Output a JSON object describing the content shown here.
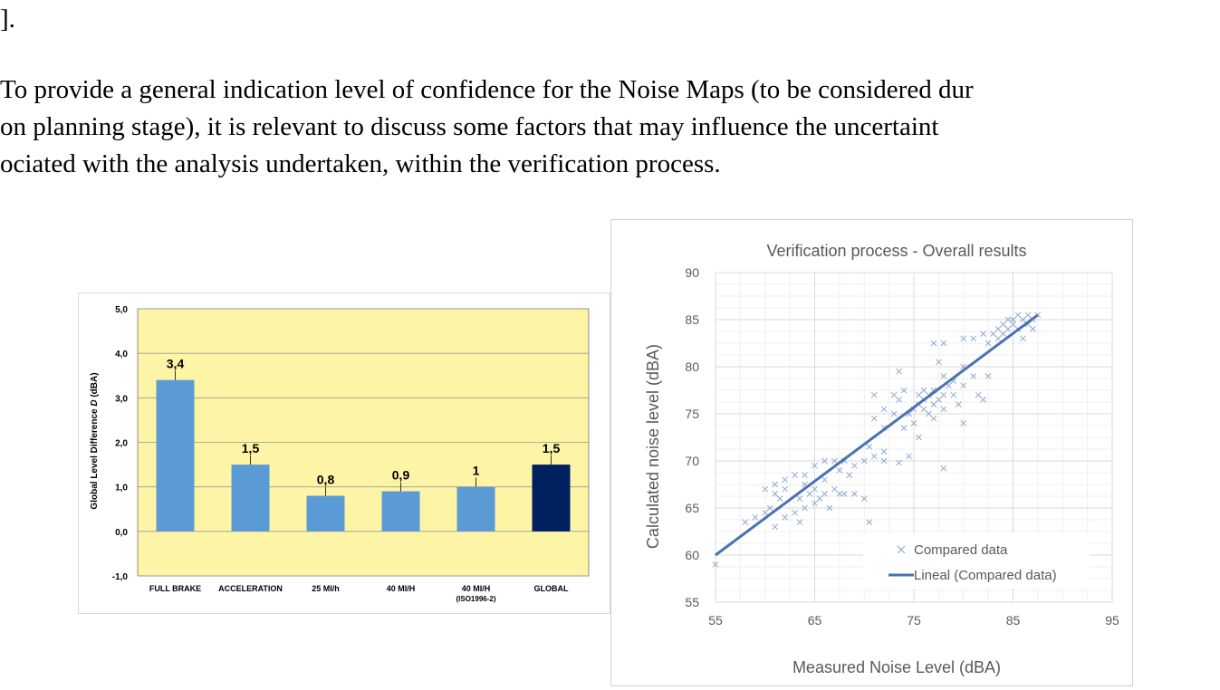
{
  "document": {
    "lines": [
      "].",
      "To provide a general indication level of confidence for the Noise Maps (to be considered dur",
      "on planning stage), it is relevant to discuss some factors that may influence the uncertaint",
      "ociated with the analysis undertaken, within the verification process."
    ]
  },
  "colors": {
    "bar_fill": "#5b9bd5",
    "bar_global_fill": "#002060",
    "plot_area_bg": "#fdf5a5",
    "scatter_marker": "#8ea9cf",
    "trendline": "#4a72b2",
    "grid": "#d9d9d9",
    "tick_text": "#595959"
  },
  "chart_data": [
    {
      "type": "bar",
      "title": "",
      "ylabel_parts": [
        "Global Level Difference ",
        "D",
        " (dBA)"
      ],
      "xlabel": "",
      "categories": [
        [
          "FULL BRAKE"
        ],
        [
          "ACCELERATION"
        ],
        [
          "25 MI/h"
        ],
        [
          "40 MI/H"
        ],
        [
          "40 MI/H",
          "(ISO1996-2)"
        ],
        [
          "GLOBAL"
        ]
      ],
      "values": [
        3.4,
        1.5,
        0.8,
        0.9,
        1.0,
        1.5
      ],
      "value_labels": [
        "3,4",
        "1,5",
        "0,8",
        "0,9",
        "1",
        "1,5"
      ],
      "ylim": [
        -1,
        5
      ],
      "yticks": [
        5,
        4,
        3,
        2,
        1,
        0,
        -1
      ],
      "ytick_labels": [
        "5,0",
        "4,0",
        "3,0",
        "2,0",
        "1,0",
        "0,0",
        "-1,0"
      ],
      "grid": true
    },
    {
      "type": "scatter",
      "title": "Verification process - Overall results",
      "xlabel": "Measured Noise Level (dBA)",
      "ylabel": "Calculated noise level (dBA)",
      "xlim": [
        55,
        95
      ],
      "ylim": [
        55,
        90
      ],
      "xticks": [
        55,
        65,
        75,
        85,
        95
      ],
      "yticks": [
        55,
        60,
        65,
        70,
        75,
        80,
        85,
        90
      ],
      "grid": true,
      "legend_position": "bottom-right",
      "legend": [
        "Compared data",
        "Lineal (Compared data)"
      ],
      "series": [
        {
          "name": "Compared data",
          "marker": "x",
          "points": [
            [
              55.0,
              59.0
            ],
            [
              58.0,
              63.5
            ],
            [
              59.0,
              64.0
            ],
            [
              60.0,
              64.5
            ],
            [
              60.5,
              65.0
            ],
            [
              61.0,
              63.0
            ],
            [
              61.0,
              66.5
            ],
            [
              62.0,
              64.0
            ],
            [
              62.0,
              67.0
            ],
            [
              63.0,
              64.5
            ],
            [
              63.5,
              66.0
            ],
            [
              64.0,
              65.0
            ],
            [
              64.0,
              67.5
            ],
            [
              64.5,
              66.5
            ],
            [
              65.0,
              65.5
            ],
            [
              65.0,
              67.0
            ],
            [
              65.5,
              66.0
            ],
            [
              66.0,
              66.5
            ],
            [
              66.5,
              65.0
            ],
            [
              67.0,
              67.0
            ],
            [
              67.5,
              66.5
            ],
            [
              68.0,
              66.5
            ],
            [
              69.0,
              66.5
            ],
            [
              70.0,
              66.0
            ],
            [
              60.0,
              67.0
            ],
            [
              61.0,
              67.5
            ],
            [
              62.0,
              68.0
            ],
            [
              63.0,
              68.5
            ],
            [
              64.0,
              68.5
            ],
            [
              65.0,
              69.5
            ],
            [
              66.0,
              70.0
            ],
            [
              67.0,
              70.0
            ],
            [
              68.0,
              70.0
            ],
            [
              69.0,
              69.5
            ],
            [
              70.0,
              70.0
            ],
            [
              70.5,
              63.5
            ],
            [
              71.0,
              70.5
            ],
            [
              72.0,
              70.0
            ],
            [
              61.5,
              66.0
            ],
            [
              63.5,
              63.5
            ],
            [
              66.0,
              68.0
            ],
            [
              67.5,
              69.0
            ],
            [
              68.5,
              68.5
            ],
            [
              70.5,
              71.5
            ],
            [
              72.0,
              71.0
            ],
            [
              73.5,
              69.8
            ],
            [
              74.5,
              70.5
            ],
            [
              78.0,
              69.2
            ],
            [
              71.0,
              74.5
            ],
            [
              71.0,
              77.0
            ],
            [
              72.0,
              73.5
            ],
            [
              72.0,
              75.5
            ],
            [
              73.0,
              75.0
            ],
            [
              73.0,
              77.0
            ],
            [
              73.5,
              76.5
            ],
            [
              74.0,
              73.5
            ],
            [
              74.0,
              77.5
            ],
            [
              74.5,
              75.0
            ],
            [
              75.0,
              74.0
            ],
            [
              75.0,
              75.5
            ],
            [
              75.5,
              76.0
            ],
            [
              75.5,
              77.0
            ],
            [
              76.0,
              75.5
            ],
            [
              76.0,
              76.5
            ],
            [
              76.5,
              75.0
            ],
            [
              76.5,
              77.0
            ],
            [
              77.0,
              76.0
            ],
            [
              77.0,
              77.5
            ],
            [
              77.5,
              76.5
            ],
            [
              78.0,
              75.5
            ],
            [
              78.0,
              77.0
            ],
            [
              78.5,
              78.0
            ],
            [
              79.0,
              77.0
            ],
            [
              79.0,
              78.5
            ],
            [
              79.5,
              76.0
            ],
            [
              80.0,
              78.0
            ],
            [
              80.0,
              74.0
            ],
            [
              81.0,
              79.0
            ],
            [
              82.0,
              76.5
            ],
            [
              82.5,
              79.0
            ],
            [
              73.5,
              79.5
            ],
            [
              75.5,
              72.5
            ],
            [
              76.0,
              77.5
            ],
            [
              77.0,
              74.5
            ],
            [
              78.0,
              79.0
            ],
            [
              80.0,
              80.0
            ],
            [
              81.5,
              77.0
            ],
            [
              77.5,
              80.5
            ],
            [
              77.0,
              82.5
            ],
            [
              78.0,
              82.5
            ],
            [
              80.0,
              83.0
            ],
            [
              81.0,
              83.0
            ],
            [
              82.0,
              83.5
            ],
            [
              82.5,
              82.5
            ],
            [
              83.0,
              83.5
            ],
            [
              83.5,
              83.0
            ],
            [
              84.0,
              83.5
            ],
            [
              84.0,
              84.5
            ],
            [
              84.5,
              84.0
            ],
            [
              85.0,
              84.5
            ],
            [
              85.0,
              85.0
            ],
            [
              85.5,
              84.0
            ],
            [
              86.0,
              85.0
            ],
            [
              86.0,
              83.0
            ],
            [
              86.5,
              84.5
            ],
            [
              87.0,
              85.0
            ],
            [
              87.5,
              85.5
            ],
            [
              83.5,
              84.0
            ],
            [
              85.5,
              85.5
            ],
            [
              86.5,
              85.5
            ],
            [
              84.5,
              85.0
            ],
            [
              87.0,
              84.0
            ]
          ]
        },
        {
          "name": "Lineal (Compared data)",
          "type": "line",
          "from": [
            55,
            60
          ],
          "to": [
            87.5,
            85.5
          ]
        }
      ]
    }
  ]
}
